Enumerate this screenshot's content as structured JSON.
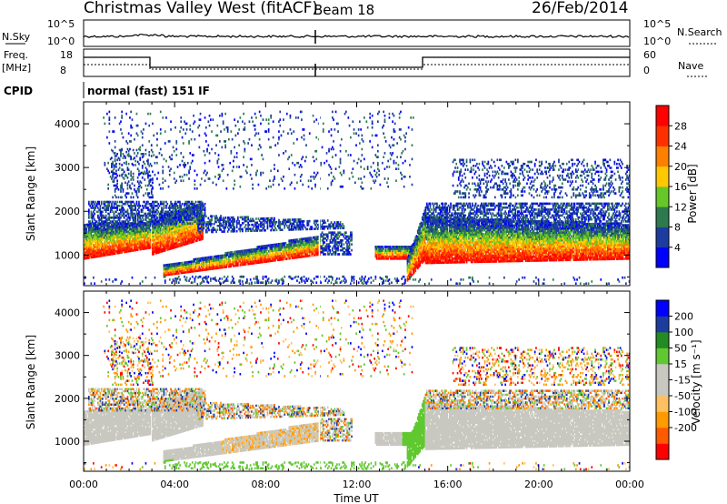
{
  "header": {
    "station": "Christmas Valley West (fitACF)",
    "beam": "Beam 18",
    "date": "26/Feb/2014"
  },
  "noise_panel": {
    "left_label": "N.Sky",
    "right_label": "N.Search",
    "ticks_left": [
      "10^5",
      "10^0"
    ],
    "ticks_right": [
      "10^5",
      "10^0"
    ]
  },
  "freq_panel": {
    "left_label_1": "Freq.",
    "left_label_2": "[MHz]",
    "right_label": "Nave",
    "ticks_left": [
      "18",
      "8"
    ],
    "ticks_right": [
      "60",
      "0"
    ]
  },
  "cpid": {
    "label": "CPID",
    "value": "normal (fast) 151 IF"
  },
  "colors": {
    "power_scale": [
      "#0000ff",
      "#1c3ca0",
      "#2e7a4e",
      "#66c828",
      "#ffc800",
      "#ff7f00",
      "#ff3000",
      "#ff0000"
    ],
    "velocity_scale": [
      "#ff0000",
      "#ff5a00",
      "#ff9a00",
      "#ffc060",
      "#c8c8c0",
      "#c8c8c0",
      "#60c830",
      "#228b22",
      "#1c3ca0",
      "#0000ff"
    ]
  },
  "chart_data": [
    {
      "type": "heatmap",
      "panel": "power",
      "ylabel": "Slant Range [km]",
      "yticks": [
        "1000",
        "2000",
        "3000",
        "4000"
      ],
      "ylim": [
        300,
        4500
      ],
      "xlim": [
        0,
        24
      ],
      "colorbar_label": "Power [dB]",
      "colorbar_ticks": [
        "4",
        "8",
        "12",
        "16",
        "20",
        "24",
        "28"
      ],
      "colorbar_range": [
        0,
        32
      ]
    },
    {
      "type": "heatmap",
      "panel": "velocity",
      "ylabel": "Slant Range [km]",
      "yticks": [
        "1000",
        "2000",
        "3000",
        "4000"
      ],
      "ylim": [
        300,
        4500
      ],
      "xlim": [
        0,
        24
      ],
      "colorbar_label": "Velocity [m s⁻¹]",
      "colorbar_ticks": [
        "200",
        "100",
        "50",
        "15",
        "-15",
        "-50",
        "-100",
        "-200"
      ],
      "xlabel": "Time UT",
      "xticks": [
        "00:00",
        "04:00",
        "08:00",
        "12:00",
        "16:00",
        "20:00",
        "00:00"
      ]
    }
  ]
}
